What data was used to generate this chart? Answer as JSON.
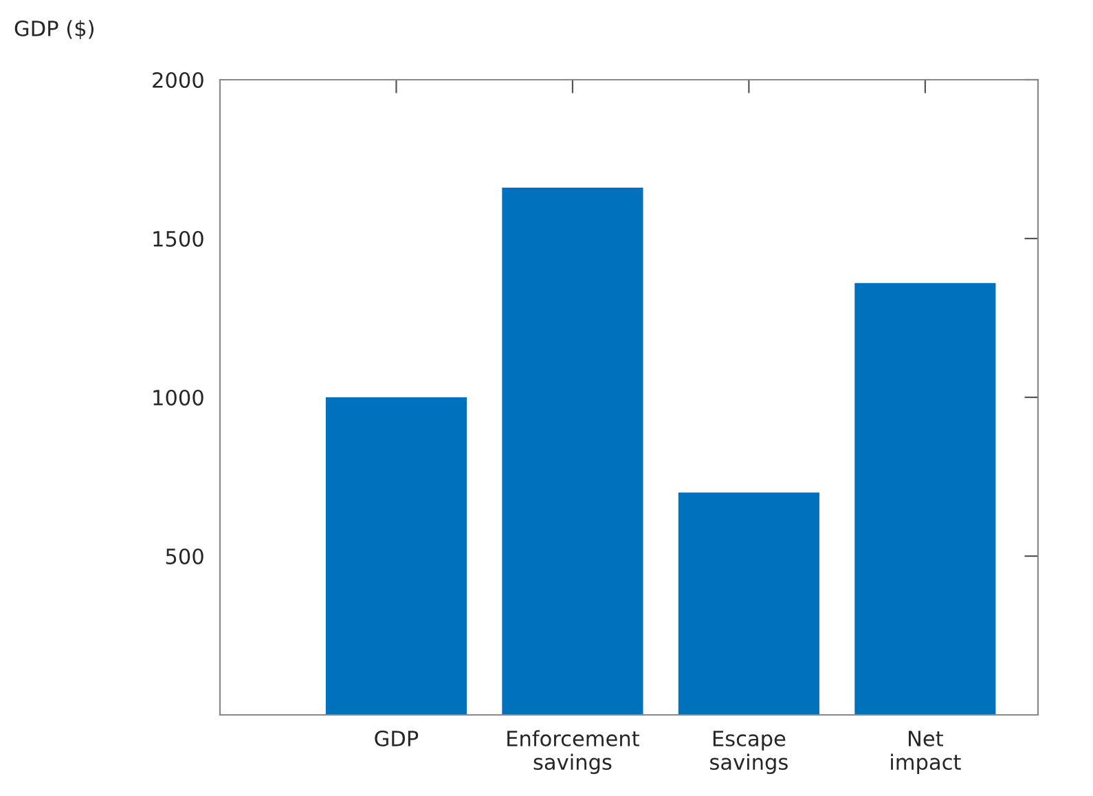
{
  "chart_data": {
    "type": "bar",
    "ylabel": "GDP ($)",
    "categories": [
      "GDP",
      "Enforcement\nsavings",
      "Escape\nsavings",
      "Net\nimpact"
    ],
    "values": [
      1000,
      1660,
      700,
      1360
    ],
    "color": "#0072bd",
    "ylim": [
      0,
      2000
    ],
    "yticks": [
      500,
      1000,
      1500,
      2000
    ],
    "grid": false,
    "legend": false
  }
}
